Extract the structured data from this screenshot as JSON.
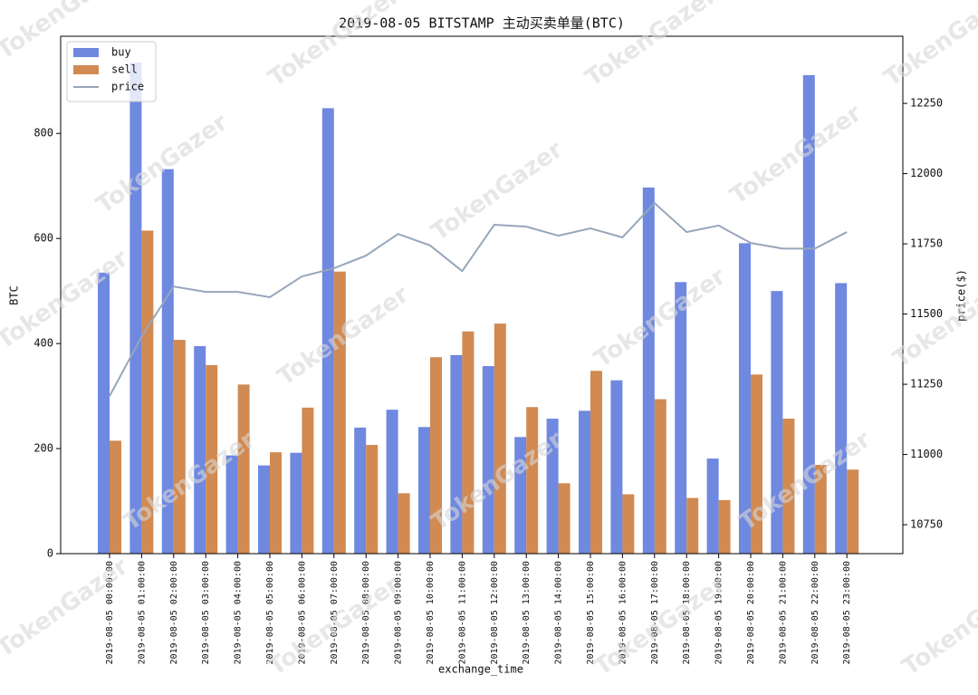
{
  "chart_data": {
    "type": "bar",
    "title": "2019-08-05 BITSTAMP 主动买卖单量(BTC)",
    "x_label": "exchange_time",
    "y_label": "BTC",
    "y2_label": "price($)",
    "watermark": "TokenGazer",
    "categories": [
      "2019-08-05 00:00:00",
      "2019-08-05 01:00:00",
      "2019-08-05 02:00:00",
      "2019-08-05 03:00:00",
      "2019-08-05 04:00:00",
      "2019-08-05 05:00:00",
      "2019-08-05 06:00:00",
      "2019-08-05 07:00:00",
      "2019-08-05 08:00:00",
      "2019-08-05 09:00:00",
      "2019-08-05 10:00:00",
      "2019-08-05 11:00:00",
      "2019-08-05 12:00:00",
      "2019-08-05 13:00:00",
      "2019-08-05 14:00:00",
      "2019-08-05 15:00:00",
      "2019-08-05 16:00:00",
      "2019-08-05 17:00:00",
      "2019-08-05 18:00:00",
      "2019-08-05 19:00:00",
      "2019-08-05 20:00:00",
      "2019-08-05 21:00:00",
      "2019-08-05 22:00:00",
      "2019-08-05 23:00:00"
    ],
    "series": [
      {
        "name": "buy",
        "type": "bar",
        "color": "#6f88e0",
        "values": [
          535,
          935,
          732,
          395,
          187,
          168,
          192,
          848,
          240,
          274,
          241,
          378,
          357,
          222,
          257,
          272,
          330,
          697,
          517,
          181,
          591,
          500,
          911,
          515
        ]
      },
      {
        "name": "sell",
        "type": "bar",
        "color": "#d08a52",
        "values": [
          215,
          615,
          407,
          359,
          322,
          193,
          278,
          537,
          207,
          115,
          374,
          423,
          438,
          279,
          134,
          348,
          113,
          294,
          106,
          102,
          341,
          257,
          169,
          160
        ]
      },
      {
        "name": "price",
        "type": "line",
        "axis": "y2",
        "color": "#97a6ba",
        "values": [
          11208,
          11420,
          11598,
          11579,
          11579,
          11560,
          11634,
          11663,
          11708,
          11785,
          11744,
          11653,
          11818,
          11811,
          11779,
          11805,
          11773,
          11895,
          11792,
          11815,
          11753,
          11733,
          11733,
          11792
        ]
      }
    ],
    "ylim": [
      0,
      985
    ],
    "yticks": [
      0,
      200,
      400,
      600,
      800
    ],
    "y2lim": [
      10647,
      12489
    ],
    "y2ticks": [
      10750,
      11000,
      11250,
      11500,
      11750,
      12000,
      12250
    ],
    "legend": "upper left"
  }
}
